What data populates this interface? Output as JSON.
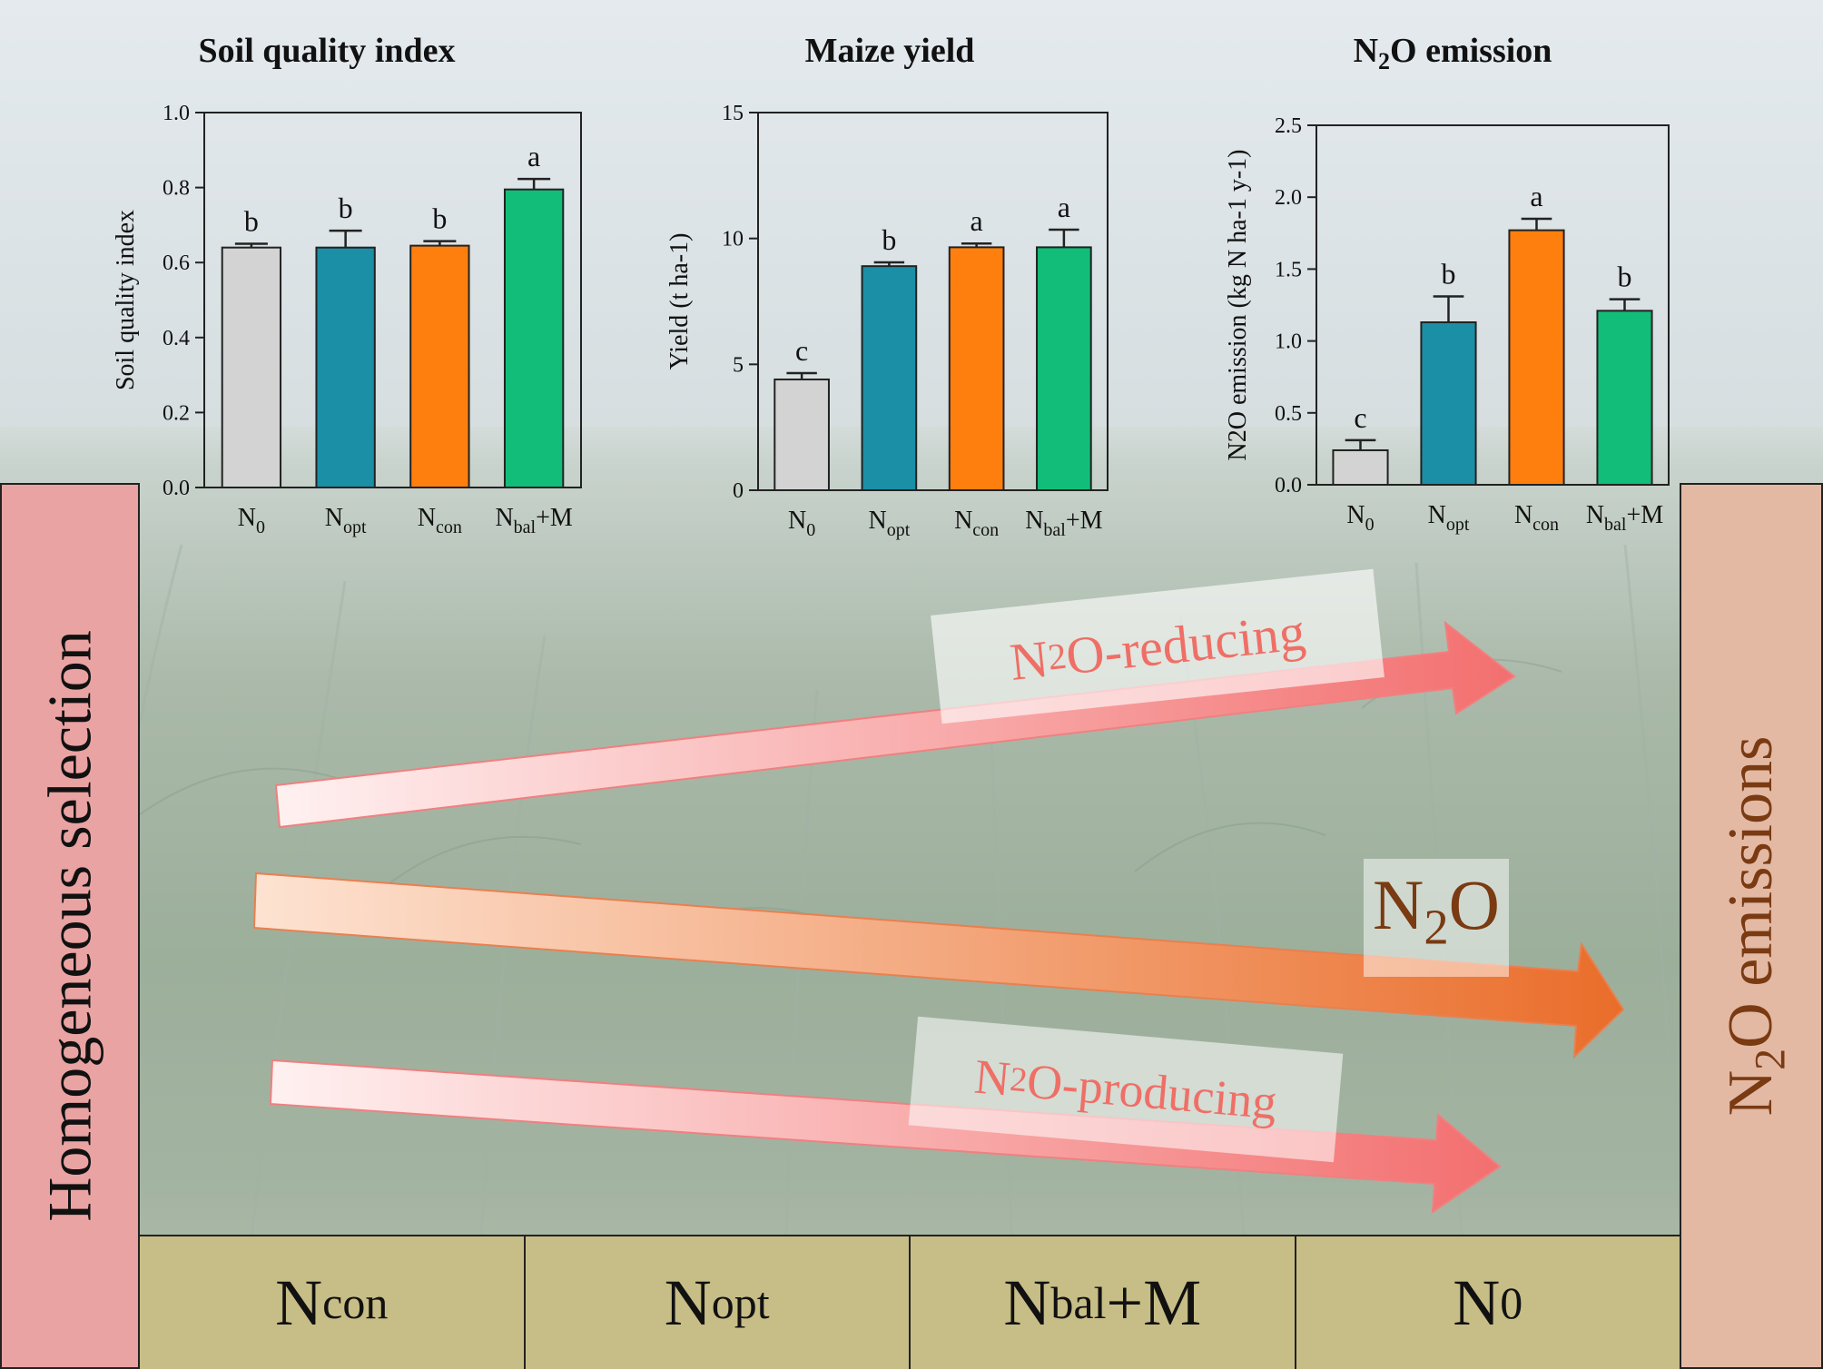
{
  "side_labels": {
    "left": "Homogeneous selection",
    "right_prefix": "N",
    "right_sub": "2",
    "right_suffix": "O emissions"
  },
  "bottom_treatments": [
    {
      "main": "N",
      "sub": "con",
      "suffix": ""
    },
    {
      "main": "N",
      "sub": "opt",
      "suffix": ""
    },
    {
      "main": "N",
      "sub": "bal",
      "suffix": "+M"
    },
    {
      "main": "N",
      "sub": "0",
      "suffix": ""
    }
  ],
  "arrow_labels": {
    "reducing": {
      "prefix": "N",
      "sub": "2",
      "suffix": "O-reducing"
    },
    "producing": {
      "prefix": "N",
      "sub": "2",
      "suffix": "O-producing"
    },
    "n2o": {
      "prefix": "N",
      "sub": "2",
      "suffix": "O"
    }
  },
  "colors": {
    "N0": "#d3d3d3",
    "Nopt": "#1a8fa6",
    "Ncon": "#ff7f0e",
    "NbalM": "#11bd78",
    "arrow_pink": "#f48c8c",
    "arrow_orange": "#ee7a3a"
  },
  "chart_data": [
    {
      "type": "bar",
      "title": "Soil quality index",
      "title_parts": {
        "prefix": "Soil quality index",
        "sub": "",
        "suffix": ""
      },
      "ylabel": "Soil quality index",
      "categories": [
        {
          "main": "N",
          "sub": "0",
          "suffix": ""
        },
        {
          "main": "N",
          "sub": "opt",
          "suffix": ""
        },
        {
          "main": "N",
          "sub": "con",
          "suffix": ""
        },
        {
          "main": "N",
          "sub": "bal",
          "suffix": "+M"
        }
      ],
      "values": [
        0.64,
        0.64,
        0.645,
        0.795
      ],
      "errors": [
        0.01,
        0.045,
        0.012,
        0.028
      ],
      "letters": [
        "b",
        "b",
        "b",
        "a"
      ],
      "ylim": [
        0,
        1.0
      ],
      "ticks": [
        "0.0",
        "0.2",
        "0.4",
        "0.6",
        "0.8",
        "1.0"
      ],
      "tick_values": [
        0,
        0.2,
        0.4,
        0.6,
        0.8,
        1.0
      ]
    },
    {
      "type": "bar",
      "title": "Maize yield",
      "title_parts": {
        "prefix": "Maize yield",
        "sub": "",
        "suffix": ""
      },
      "ylabel": "Yield (t ha-1)",
      "categories": [
        {
          "main": "N",
          "sub": "0",
          "suffix": ""
        },
        {
          "main": "N",
          "sub": "opt",
          "suffix": ""
        },
        {
          "main": "N",
          "sub": "con",
          "suffix": ""
        },
        {
          "main": "N",
          "sub": "bal",
          "suffix": "+M"
        }
      ],
      "values": [
        4.4,
        8.9,
        9.65,
        9.65
      ],
      "errors": [
        0.25,
        0.15,
        0.15,
        0.7
      ],
      "letters": [
        "c",
        "b",
        "a",
        "a"
      ],
      "ylim": [
        0,
        15
      ],
      "ticks": [
        "0",
        "5",
        "10",
        "15"
      ],
      "tick_values": [
        0,
        5,
        10,
        15
      ]
    },
    {
      "type": "bar",
      "title": "N2O emission",
      "title_parts": {
        "prefix": "N",
        "sub": "2",
        "suffix": "O emission"
      },
      "ylabel": "N2O emission (kg N ha-1 y-1)",
      "categories": [
        {
          "main": "N",
          "sub": "0",
          "suffix": ""
        },
        {
          "main": "N",
          "sub": "opt",
          "suffix": ""
        },
        {
          "main": "N",
          "sub": "con",
          "suffix": ""
        },
        {
          "main": "N",
          "sub": "bal",
          "suffix": "+M"
        }
      ],
      "values": [
        0.24,
        1.13,
        1.77,
        1.21
      ],
      "errors": [
        0.07,
        0.18,
        0.08,
        0.08
      ],
      "letters": [
        "c",
        "b",
        "a",
        "b"
      ],
      "ylim": [
        0,
        2.5
      ],
      "ticks": [
        "0.0",
        "0.5",
        "1.0",
        "1.5",
        "2.0",
        "2.5"
      ],
      "tick_values": [
        0,
        0.5,
        1.0,
        1.5,
        2.0,
        2.5
      ]
    }
  ]
}
